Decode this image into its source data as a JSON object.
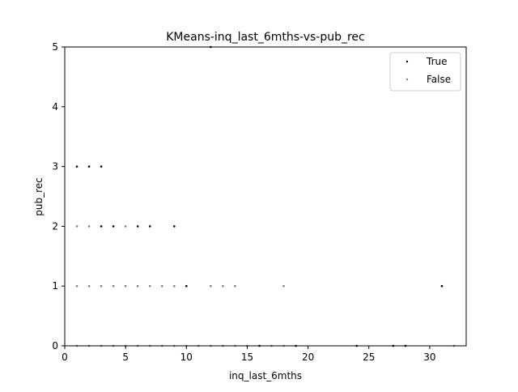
{
  "chart_data": {
    "type": "scatter",
    "title": "KMeans-inq_last_6mths-vs-pub_rec",
    "xlabel": "inq_last_6mths",
    "ylabel": "pub_rec",
    "xlim": [
      0,
      33
    ],
    "ylim": [
      0,
      5
    ],
    "xticks": [
      0,
      5,
      10,
      15,
      20,
      25,
      30
    ],
    "yticks": [
      0,
      1,
      2,
      3,
      4,
      5
    ],
    "grid": false,
    "legend_position": "top-right",
    "series": [
      {
        "name": "True",
        "color": "#000000",
        "points": [
          [
            1,
            3
          ],
          [
            2,
            3
          ],
          [
            3,
            3
          ],
          [
            3,
            2
          ],
          [
            4,
            2
          ],
          [
            6,
            2
          ],
          [
            7,
            2
          ],
          [
            9,
            2
          ],
          [
            10,
            1
          ],
          [
            31,
            1
          ],
          [
            12,
            5
          ],
          [
            16,
            0
          ],
          [
            19,
            0
          ],
          [
            24,
            0
          ],
          [
            27,
            0
          ],
          [
            28,
            0
          ]
        ]
      },
      {
        "name": "False",
        "color": "#808080",
        "points": [
          [
            1,
            2
          ],
          [
            2,
            2
          ],
          [
            5,
            2
          ],
          [
            1,
            1
          ],
          [
            2,
            1
          ],
          [
            3,
            1
          ],
          [
            4,
            1
          ],
          [
            5,
            1
          ],
          [
            6,
            1
          ],
          [
            7,
            1
          ],
          [
            8,
            1
          ],
          [
            9,
            1
          ],
          [
            12,
            1
          ],
          [
            13,
            1
          ],
          [
            14,
            1
          ],
          [
            18,
            1
          ],
          [
            1,
            0
          ],
          [
            2,
            0
          ],
          [
            3,
            0
          ],
          [
            4,
            0
          ],
          [
            5,
            0
          ],
          [
            6,
            0
          ],
          [
            7,
            0
          ],
          [
            8,
            0
          ],
          [
            9,
            0
          ],
          [
            10,
            0
          ],
          [
            11,
            0
          ],
          [
            12,
            0
          ],
          [
            13,
            0
          ],
          [
            14,
            0
          ],
          [
            15,
            0
          ],
          [
            17,
            0
          ],
          [
            18,
            0
          ],
          [
            32,
            0
          ]
        ]
      }
    ]
  }
}
